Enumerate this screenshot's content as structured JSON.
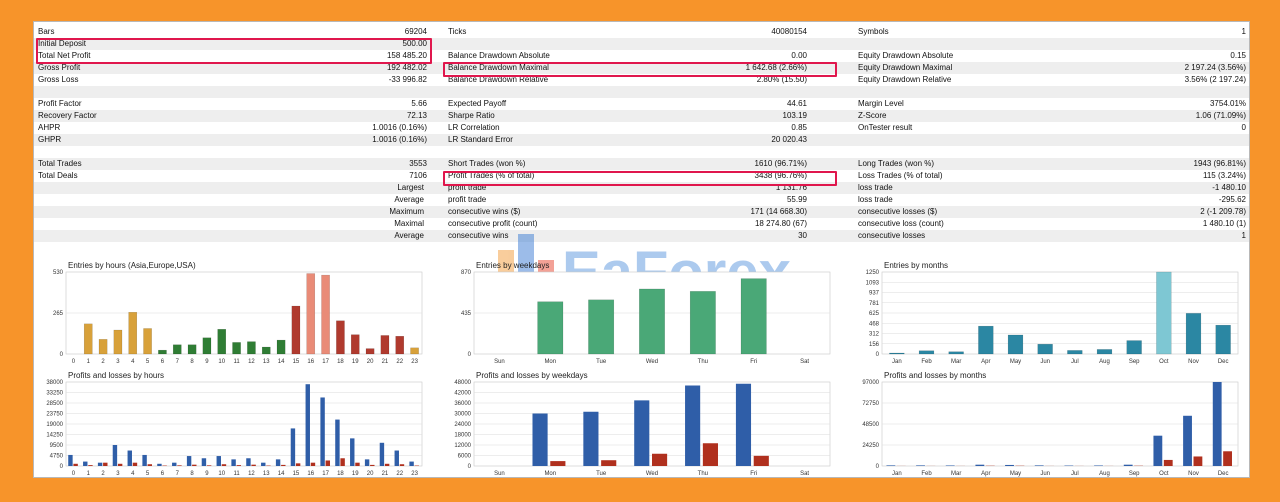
{
  "stats_rows": [
    {
      "cells": [
        {
          "label": "Bars",
          "value": "69204"
        },
        {
          "label": "Ticks",
          "value": "40080154"
        },
        {
          "label": "Symbols",
          "value": "1"
        }
      ]
    },
    {
      "cells": [
        {
          "label": "Initial Deposit",
          "value": "500.00"
        },
        {
          "label": "",
          "value": ""
        },
        {
          "label": "",
          "value": ""
        }
      ]
    },
    {
      "cells": [
        {
          "label": "Total Net Profit",
          "value": "158 485.20"
        },
        {
          "label": "Balance Drawdown Absolute",
          "value": "0.00"
        },
        {
          "label": "Equity Drawdown Absolute",
          "value": "0.15"
        }
      ]
    },
    {
      "cells": [
        {
          "label": "Gross Profit",
          "value": "192 482.02"
        },
        {
          "label": "Balance Drawdown Maximal",
          "value": "1 642.68 (2.66%)"
        },
        {
          "label": "Equity Drawdown Maximal",
          "value": "2 197.24 (3.56%)"
        }
      ]
    },
    {
      "cells": [
        {
          "label": "Gross Loss",
          "value": "-33 996.82"
        },
        {
          "label": "Balance Drawdown Relative",
          "value": "2.80% (15.50)"
        },
        {
          "label": "Equity Drawdown Relative",
          "value": "3.56% (2 197.24)"
        }
      ]
    },
    {
      "cells": [
        {
          "label": "",
          "value": ""
        },
        {
          "label": "",
          "value": ""
        },
        {
          "label": "",
          "value": ""
        }
      ]
    },
    {
      "cells": [
        {
          "label": "Profit Factor",
          "value": "5.66"
        },
        {
          "label": "Expected Payoff",
          "value": "44.61"
        },
        {
          "label": "Margin Level",
          "value": "3754.01%"
        }
      ]
    },
    {
      "cells": [
        {
          "label": "Recovery Factor",
          "value": "72.13"
        },
        {
          "label": "Sharpe Ratio",
          "value": "103.19"
        },
        {
          "label": "Z-Score",
          "value": "1.06 (71.09%)"
        }
      ]
    },
    {
      "cells": [
        {
          "label": "AHPR",
          "value": "1.0016 (0.16%)"
        },
        {
          "label": "LR Correlation",
          "value": "0.85"
        },
        {
          "label": "OnTester result",
          "value": "0"
        }
      ]
    },
    {
      "cells": [
        {
          "label": "GHPR",
          "value": "1.0016 (0.16%)"
        },
        {
          "label": "LR Standard Error",
          "value": "20 020.43"
        },
        {
          "label": "",
          "value": ""
        }
      ]
    },
    {
      "cells": [
        {
          "label": "",
          "value": ""
        },
        {
          "label": "",
          "value": ""
        },
        {
          "label": "",
          "value": ""
        }
      ]
    },
    {
      "cells": [
        {
          "label": "Total Trades",
          "value": "3553"
        },
        {
          "label": "Short Trades (won %)",
          "value": "1610 (96.71%)"
        },
        {
          "label": "Long Trades (won %)",
          "value": "1943 (96.81%)"
        }
      ]
    },
    {
      "cells": [
        {
          "label": "Total Deals",
          "value": "7106"
        },
        {
          "label": "Profit Trades (% of total)",
          "value": "3438 (96.76%)"
        },
        {
          "label": "Loss Trades (% of total)",
          "value": "115 (3.24%)"
        }
      ]
    },
    {
      "cells": [
        {
          "label": "Largest",
          "value": "",
          "right": true
        },
        {
          "label": "profit trade",
          "value": "1 131.76"
        },
        {
          "label": "loss trade",
          "value": "-1 480.10"
        }
      ]
    },
    {
      "cells": [
        {
          "label": "Average",
          "value": "",
          "right": true
        },
        {
          "label": "profit trade",
          "value": "55.99"
        },
        {
          "label": "loss trade",
          "value": "-295.62"
        }
      ]
    },
    {
      "cells": [
        {
          "label": "Maximum",
          "value": "",
          "right": true
        },
        {
          "label": "consecutive wins ($)",
          "value": "171 (14 668.30)"
        },
        {
          "label": "consecutive losses ($)",
          "value": "2 (-1 209.78)"
        }
      ]
    },
    {
      "cells": [
        {
          "label": "Maximal",
          "value": "",
          "right": true
        },
        {
          "label": "consecutive profit (count)",
          "value": "18 274.80 (67)"
        },
        {
          "label": "consecutive loss (count)",
          "value": "1 480.10 (1)"
        }
      ]
    },
    {
      "cells": [
        {
          "label": "Average",
          "value": "",
          "right": true
        },
        {
          "label": "consecutive wins",
          "value": "30"
        },
        {
          "label": "consecutive losses",
          "value": "1"
        }
      ]
    }
  ],
  "watermark": "EaForex",
  "chart_data": [
    {
      "type": "bar",
      "title": "Entries by hours (Asia,Europe,USA)",
      "categories": [
        "0",
        "1",
        "2",
        "3",
        "4",
        "5",
        "6",
        "7",
        "8",
        "9",
        "10",
        "11",
        "12",
        "13",
        "14",
        "15",
        "16",
        "17",
        "18",
        "19",
        "20",
        "21",
        "22",
        "23"
      ],
      "yticks": [
        "530",
        "265",
        "0"
      ],
      "ylim": [
        0,
        530
      ],
      "values": [
        0,
        195,
        95,
        155,
        270,
        165,
        25,
        60,
        60,
        105,
        160,
        75,
        80,
        45,
        90,
        310,
        520,
        510,
        215,
        125,
        35,
        120,
        115,
        40
      ],
      "colors": [
        "#d8a13a",
        "#d8a13a",
        "#d8a13a",
        "#d8a13a",
        "#d8a13a",
        "#d8a13a",
        "#2f7d34",
        "#2f7d34",
        "#2f7d34",
        "#2f7d34",
        "#2f7d34",
        "#2f7d34",
        "#2f7d34",
        "#2f7d34",
        "#2f7d34",
        "#b03a2e",
        "#e98b77",
        "#e98b77",
        "#b03a2e",
        "#b03a2e",
        "#b03a2e",
        "#b03a2e",
        "#b03a2e",
        "#d8a13a"
      ]
    },
    {
      "type": "bar",
      "title": "Entries by weekdays",
      "categories": [
        "Sun",
        "Mon",
        "Tue",
        "Wed",
        "Thu",
        "Fri",
        "Sat"
      ],
      "yticks": [
        "870",
        "435",
        "0"
      ],
      "ylim": [
        0,
        870
      ],
      "values": [
        0,
        555,
        575,
        690,
        665,
        800,
        0
      ],
      "colors": [
        "#4aa877",
        "#4aa877",
        "#4aa877",
        "#4aa877",
        "#4aa877",
        "#4aa877",
        "#4aa877"
      ]
    },
    {
      "type": "bar",
      "title": "Entries by months",
      "categories": [
        "Jan",
        "Feb",
        "Mar",
        "Apr",
        "May",
        "Jun",
        "Jul",
        "Aug",
        "Sep",
        "Oct",
        "Nov",
        "Dec"
      ],
      "yticks": [
        "1250",
        "1093",
        "937",
        "781",
        "625",
        "468",
        "312",
        "156",
        "0"
      ],
      "ylim": [
        0,
        1250
      ],
      "values": [
        15,
        50,
        35,
        425,
        290,
        150,
        55,
        70,
        205,
        1250,
        620,
        440
      ],
      "colors": [
        "#2b87a3",
        "#2b87a3",
        "#2b87a3",
        "#2b87a3",
        "#2b87a3",
        "#2b87a3",
        "#2b87a3",
        "#2b87a3",
        "#2b87a3",
        "#7ec7d3",
        "#2b87a3",
        "#2b87a3"
      ]
    },
    {
      "type": "bar",
      "title": "Profits and losses by hours",
      "categories": [
        "0",
        "1",
        "2",
        "3",
        "4",
        "5",
        "6",
        "7",
        "8",
        "9",
        "10",
        "11",
        "12",
        "13",
        "14",
        "15",
        "16",
        "17",
        "18",
        "19",
        "20",
        "21",
        "22",
        "23"
      ],
      "yticks": [
        "38000",
        "33250",
        "28500",
        "23750",
        "19000",
        "14250",
        "9500",
        "4750",
        "0"
      ],
      "ylim": [
        0,
        38000
      ],
      "series": [
        {
          "name": "",
          "color": "#2f5ea8",
          "values": [
            5000,
            2000,
            1500,
            9500,
            7000,
            5000,
            1000,
            1500,
            4500,
            3500,
            4500,
            3000,
            3500,
            1500,
            3000,
            17000,
            37000,
            31000,
            21000,
            12500,
            3000,
            10500,
            7000,
            2000
          ]
        },
        {
          "name": "",
          "color": "#b0301e",
          "values": [
            1000,
            400,
            1500,
            1000,
            1500,
            800,
            200,
            300,
            600,
            300,
            800,
            400,
            600,
            200,
            500,
            1200,
            1500,
            2500,
            3500,
            1500,
            500,
            1000,
            800,
            200
          ]
        }
      ]
    },
    {
      "type": "bar",
      "title": "Profits and losses by weekdays",
      "categories": [
        "Sun",
        "Mon",
        "Tue",
        "Wed",
        "Thu",
        "Fri",
        "Sat"
      ],
      "yticks": [
        "48000",
        "42000",
        "36000",
        "30000",
        "24000",
        "18000",
        "12000",
        "6000",
        "0"
      ],
      "ylim": [
        0,
        48000
      ],
      "series": [
        {
          "name": "",
          "color": "#2f5ea8",
          "values": [
            0,
            30000,
            31000,
            37500,
            46000,
            47000,
            0
          ]
        },
        {
          "name": "",
          "color": "#b0301e",
          "values": [
            0,
            2800,
            3300,
            7000,
            13000,
            5800,
            0
          ]
        }
      ]
    },
    {
      "type": "bar",
      "title": "Profits and losses by months",
      "categories": [
        "Jan",
        "Feb",
        "Mar",
        "Apr",
        "May",
        "Jun",
        "Jul",
        "Aug",
        "Sep",
        "Oct",
        "Nov",
        "Dec"
      ],
      "yticks": [
        "97000",
        "72750",
        "48500",
        "24250",
        "0"
      ],
      "ylim": [
        0,
        97000
      ],
      "series": [
        {
          "name": "",
          "color": "#2f5ea8",
          "values": [
            700,
            700,
            600,
            1500,
            1200,
            700,
            500,
            600,
            1500,
            35000,
            58000,
            97000
          ]
        },
        {
          "name": "",
          "color": "#b0301e",
          "values": [
            100,
            100,
            100,
            300,
            300,
            100,
            100,
            100,
            300,
            7000,
            11000,
            17000
          ]
        }
      ]
    }
  ]
}
